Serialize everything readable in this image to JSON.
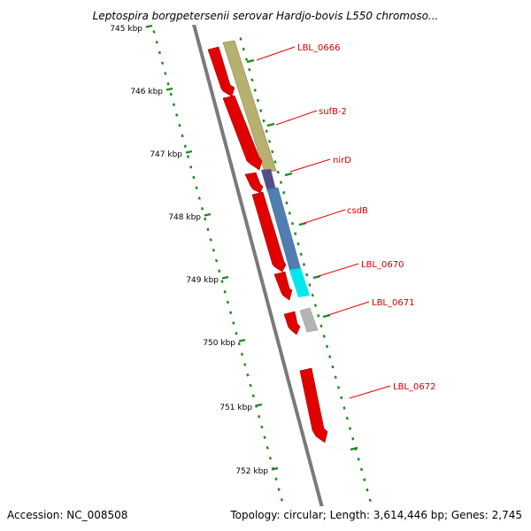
{
  "title": "Leptospira borgpetersenii serovar Hardjo-bovis L550 chromoso...",
  "footer": {
    "accession": "Accession: NC_008508",
    "summary": "Topology: circular; Length: 3,614,446 bp; Genes: 2,745"
  },
  "ruler": {
    "labels": [
      "745 kbp",
      "746 kbp",
      "747 kbp",
      "748 kbp",
      "749 kbp",
      "750 kbp",
      "751 kbp",
      "752 kbp"
    ]
  },
  "genes": [
    {
      "label": "LBL_0666"
    },
    {
      "label": "sufB-2"
    },
    {
      "label": "nirD"
    },
    {
      "label": "csdB"
    },
    {
      "label": "LBL_0670"
    },
    {
      "label": "LBL_0671"
    },
    {
      "label": "LBL_0672"
    }
  ],
  "colors": {
    "cds": "#e00000",
    "tan": "#b8b070",
    "purple": "#50508a",
    "steel_blue": "#4f7fb0",
    "cyan": "#00e8ee",
    "gray": "#b4b4b4",
    "blue": "#1010e0",
    "backbone": "#7a7a7a",
    "tick": "#1a8a1a",
    "label": "#cc0000"
  }
}
